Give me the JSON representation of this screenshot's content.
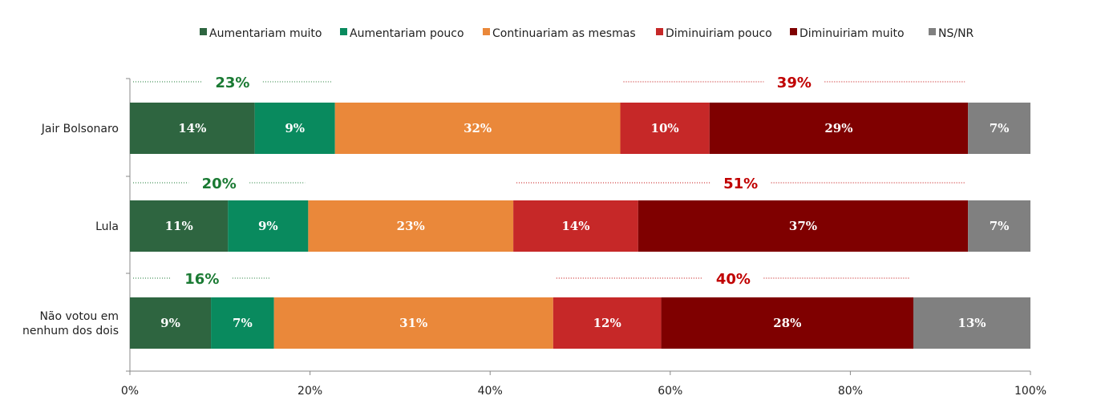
{
  "chart_data": {
    "type": "bar",
    "orientation": "horizontal",
    "stacked": "100%",
    "title": "",
    "xlabel": "",
    "ylabel": "",
    "xlim": [
      0,
      100
    ],
    "x_ticks": [
      "0%",
      "20%",
      "40%",
      "60%",
      "80%",
      "100%"
    ],
    "grid": false,
    "legend_position": "top",
    "categories": [
      "Jair Bolsonaro",
      "Lula",
      "Não votou em nenhum dos dois"
    ],
    "category_lines": [
      [
        "Jair Bolsonaro"
      ],
      [
        "Lula"
      ],
      [
        "Não votou em",
        "nenhum dos dois"
      ]
    ],
    "series": [
      {
        "name": "Aumentariam muito",
        "color": "#2e6540",
        "values": [
          14,
          11,
          9
        ],
        "labels": [
          "14%",
          "11%",
          "9%"
        ]
      },
      {
        "name": "Aumentariam pouco",
        "color": "#098a5e",
        "values": [
          9,
          9,
          7
        ],
        "labels": [
          "9%",
          "9%",
          "7%"
        ]
      },
      {
        "name": "Continuariam as mesmas",
        "color": "#ea883a",
        "values": [
          32,
          23,
          31
        ],
        "labels": [
          "32%",
          "23%",
          "31%"
        ]
      },
      {
        "name": "Diminuiriam pouco",
        "color": "#c62828",
        "values": [
          10,
          14,
          12
        ],
        "labels": [
          "10%",
          "14%",
          "12%"
        ]
      },
      {
        "name": "Diminuiriam muito",
        "color": "#7f0000",
        "values": [
          29,
          37,
          28
        ],
        "labels": [
          "29%",
          "37%",
          "28%"
        ]
      },
      {
        "name": "NS/NR",
        "color": "#808080",
        "values": [
          7,
          7,
          13
        ],
        "labels": [
          "7%",
          "7%",
          "13%"
        ]
      }
    ],
    "annotations": {
      "increase_totals": {
        "color": "#1a7a33",
        "labels": [
          "23%",
          "20%",
          "16%"
        ],
        "series_group": [
          "Aumentariam muito",
          "Aumentariam pouco"
        ]
      },
      "decrease_totals": {
        "color": "#c00000",
        "labels": [
          "39%",
          "51%",
          "40%"
        ],
        "series_group": [
          "Diminuiriam pouco",
          "Diminuiriam muito"
        ]
      }
    }
  }
}
